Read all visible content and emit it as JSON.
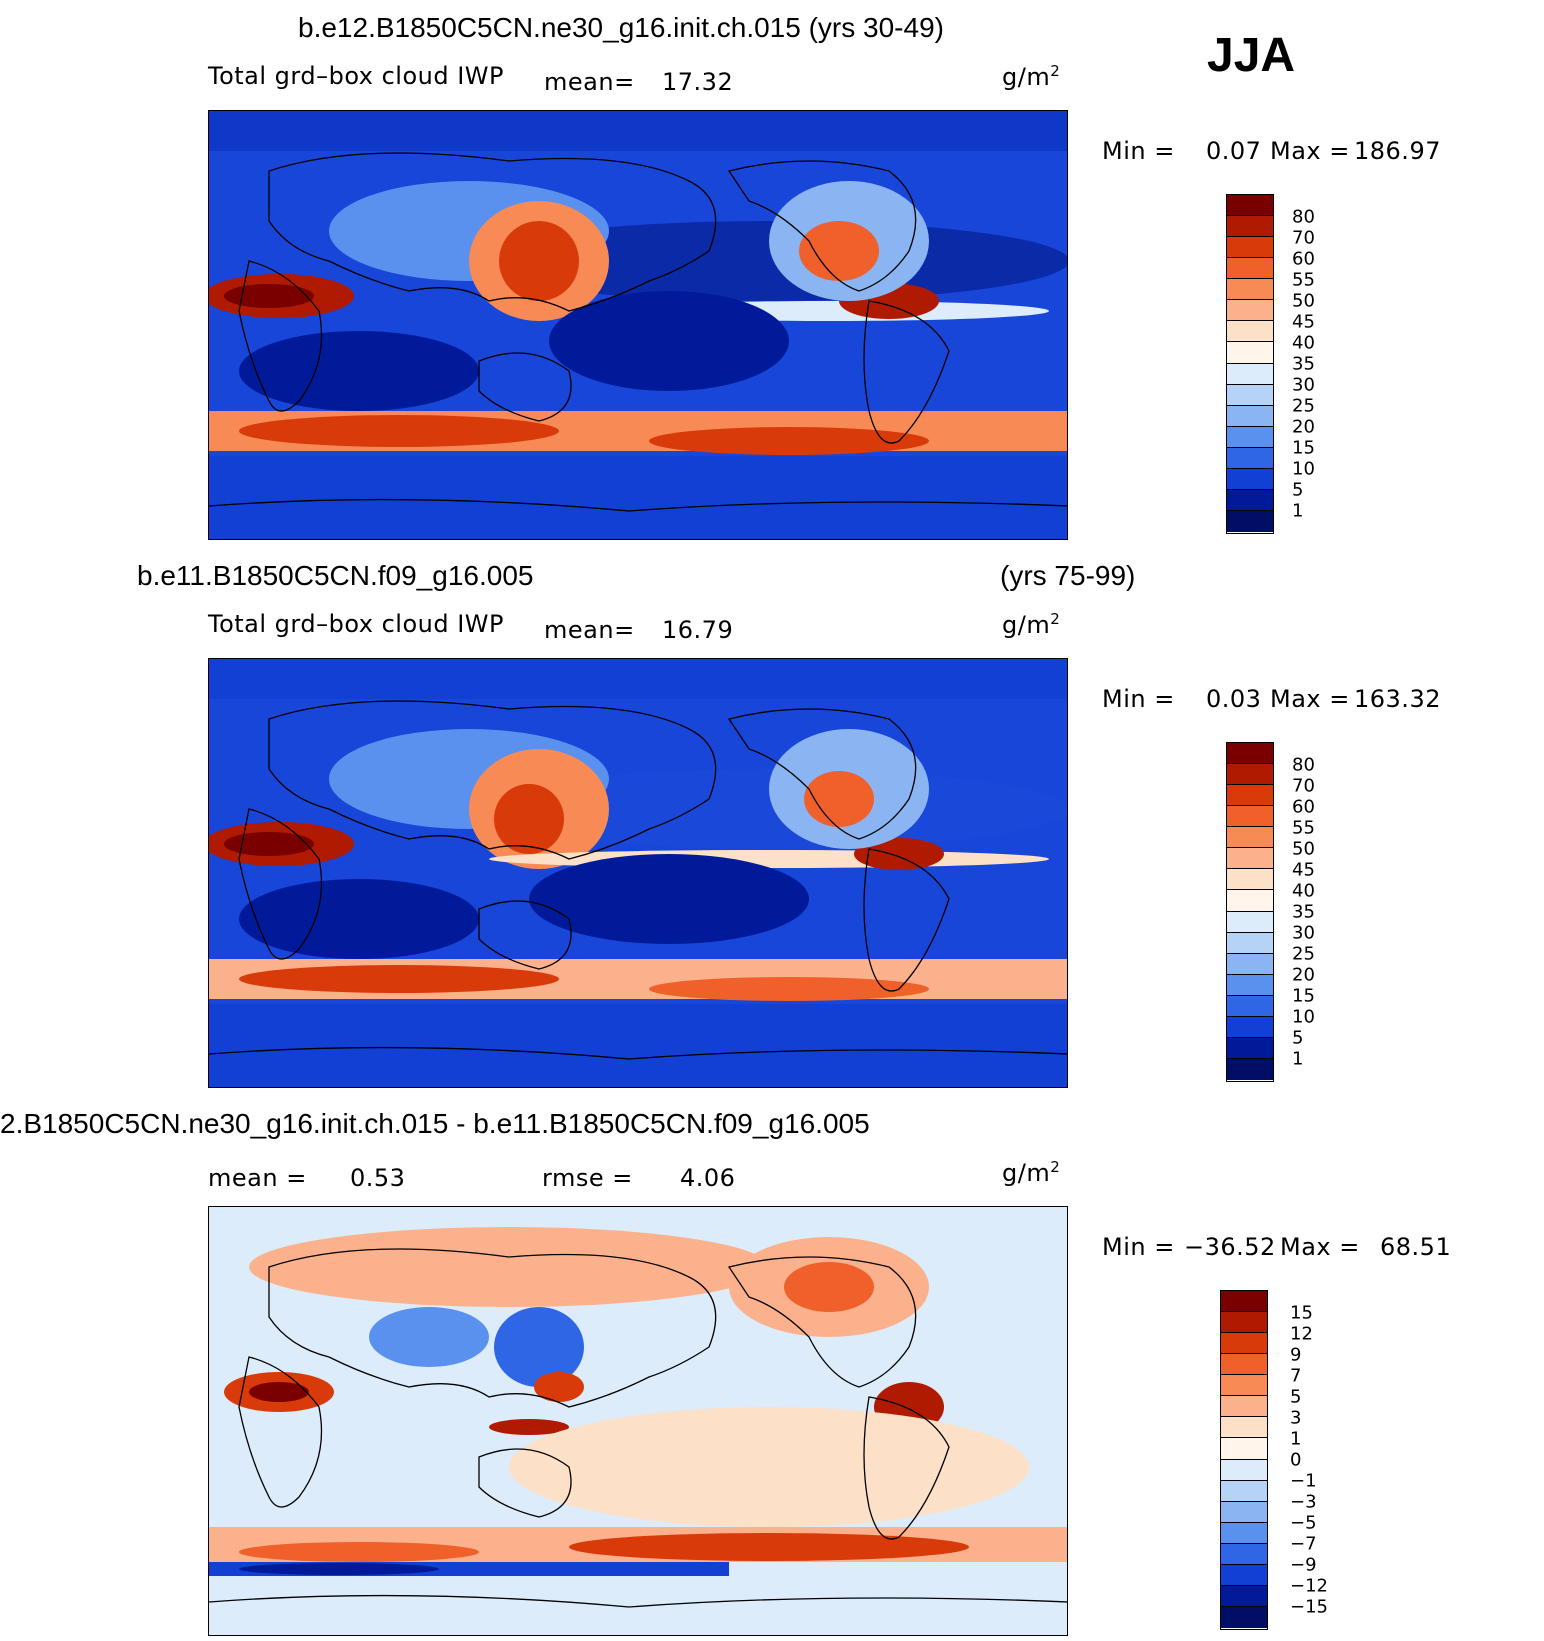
{
  "season": "JJA",
  "panels": [
    {
      "title": "b.e12.B1850C5CN.ne30_g16.init.ch.015 (yrs 30-49)",
      "years": "",
      "variable": "Total grd–box cloud IWP",
      "mean_label": "mean=",
      "mean_value": "17.32",
      "units_base": "g/m",
      "units_exp": "2",
      "min_label": "Min =",
      "min_value": "0.07",
      "max_label": "Max =",
      "max_value": "186.97",
      "levels": [
        "80",
        "70",
        "60",
        "55",
        "50",
        "45",
        "40",
        "35",
        "30",
        "25",
        "20",
        "15",
        "10",
        "5",
        "1"
      ]
    },
    {
      "title": "b.e11.B1850C5CN.f09_g16.005",
      "years": "(yrs 75-99)",
      "variable": "Total grd–box cloud IWP",
      "mean_label": "mean=",
      "mean_value": "16.79",
      "units_base": "g/m",
      "units_exp": "2",
      "min_label": "Min =",
      "min_value": "0.03",
      "max_label": "Max =",
      "max_value": "163.32",
      "levels": [
        "80",
        "70",
        "60",
        "55",
        "50",
        "45",
        "40",
        "35",
        "30",
        "25",
        "20",
        "15",
        "10",
        "5",
        "1"
      ]
    },
    {
      "title": "2.B1850C5CN.ne30_g16.init.ch.015 - b.e11.B1850C5CN.f09_g16.005",
      "mean_label": "mean =",
      "mean_value": "0.53",
      "rmse_label": "rmse =",
      "rmse_value": "4.06",
      "units_base": "g/m",
      "units_exp": "2",
      "min_label": "Min =",
      "min_value": "−36.52",
      "max_label": "Max =",
      "max_value": "68.51",
      "levels": [
        "15",
        "12",
        "9",
        "7",
        "5",
        "3",
        "1",
        "0",
        "−1",
        "−3",
        "−5",
        "−7",
        "−9",
        "−12",
        "−15"
      ]
    }
  ],
  "colors": {
    "abs_scale": [
      "#7a0000",
      "#b01a00",
      "#d93a0a",
      "#f0602a",
      "#f88a55",
      "#fbb28c",
      "#fde0c8",
      "#fff5ea",
      "#dcecfb",
      "#b5d3f6",
      "#8ab4f2",
      "#5a90ee",
      "#2f66e6",
      "#1240d4",
      "#001a9a",
      "#000e66"
    ],
    "diff_scale": [
      "#7a0000",
      "#b01a00",
      "#d93a0a",
      "#f0602a",
      "#f88a55",
      "#fbb28c",
      "#fde0c8",
      "#fff5ea",
      "#dcecfb",
      "#b5d3f6",
      "#8ab4f2",
      "#5a90ee",
      "#2f66e6",
      "#1240d4",
      "#001a9a",
      "#000e66"
    ]
  }
}
